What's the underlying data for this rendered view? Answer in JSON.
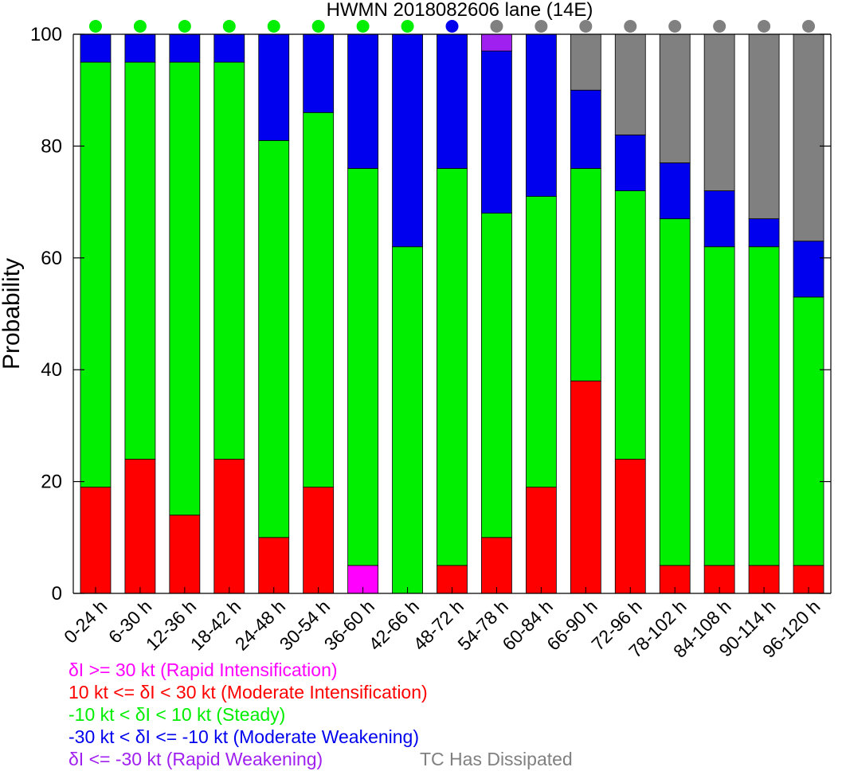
{
  "chart_data": {
    "type": "bar",
    "stacked": true,
    "title": "HWMN 2018082606 lane (14E)",
    "ylabel": "Probability",
    "xlabel": "",
    "ylim": [
      0,
      100
    ],
    "yticks": [
      0,
      20,
      40,
      60,
      80,
      100
    ],
    "categories": [
      "0-24 h",
      "6-30 h",
      "12-36 h",
      "18-42 h",
      "24-48 h",
      "30-54 h",
      "36-60 h",
      "42-66 h",
      "48-72 h",
      "54-78 h",
      "60-84 h",
      "66-90 h",
      "72-96 h",
      "78-102 h",
      "84-108 h",
      "90-114 h",
      "96-120 h"
    ],
    "series": [
      {
        "name": "δI >= 30 kt (Rapid Intensification)",
        "color": "#ff00ff",
        "values": [
          0,
          0,
          0,
          0,
          0,
          0,
          5,
          0,
          0,
          0,
          0,
          0,
          0,
          0,
          0,
          0,
          0
        ]
      },
      {
        "name": "10 kt <= δI < 30 kt (Moderate Intensification)",
        "color": "#ff0000",
        "values": [
          19,
          24,
          14,
          24,
          10,
          19,
          0,
          0,
          5,
          10,
          19,
          38,
          24,
          5,
          5,
          5,
          5
        ]
      },
      {
        "name": "-10 kt < δI < 10 kt (Steady)",
        "color": "#00ee00",
        "values": [
          76,
          71,
          81,
          71,
          71,
          67,
          71,
          62,
          71,
          58,
          52,
          38,
          48,
          62,
          57,
          57,
          48
        ]
      },
      {
        "name": "-30 kt < δI <= -10 kt (Moderate Weakening)",
        "color": "#0000ee",
        "values": [
          5,
          5,
          5,
          5,
          19,
          14,
          24,
          38,
          24,
          29,
          29,
          14,
          10,
          10,
          10,
          5,
          10
        ]
      },
      {
        "name": "δI <= -30 kt (Rapid Weakening)",
        "color": "#a020f0",
        "values": [
          0,
          0,
          0,
          0,
          0,
          0,
          0,
          0,
          0,
          3,
          0,
          0,
          0,
          0,
          0,
          0,
          0
        ]
      },
      {
        "name": "TC Has Dissipated",
        "color": "#808080",
        "values": [
          0,
          0,
          0,
          0,
          0,
          0,
          0,
          0,
          0,
          0,
          0,
          10,
          18,
          23,
          28,
          33,
          37
        ]
      }
    ],
    "dot_colors": [
      "#00ee00",
      "#00ee00",
      "#00ee00",
      "#00ee00",
      "#00ee00",
      "#00ee00",
      "#00ee00",
      "#00ee00",
      "#0000ee",
      "#808080",
      "#808080",
      "#808080",
      "#808080",
      "#808080",
      "#808080",
      "#808080",
      "#808080"
    ],
    "grid": false
  },
  "legend": {
    "ri": "δI >= 30 kt (Rapid Intensification)",
    "mi": "10 kt <= δI < 30 kt (Moderate Intensification)",
    "steady": "-10 kt < δI < 10 kt (Steady)",
    "mw": "-30 kt < δI <= -10 kt (Moderate Weakening)",
    "rw": "δI <= -30 kt (Rapid Weakening)",
    "diss": "TC Has Dissipated"
  }
}
